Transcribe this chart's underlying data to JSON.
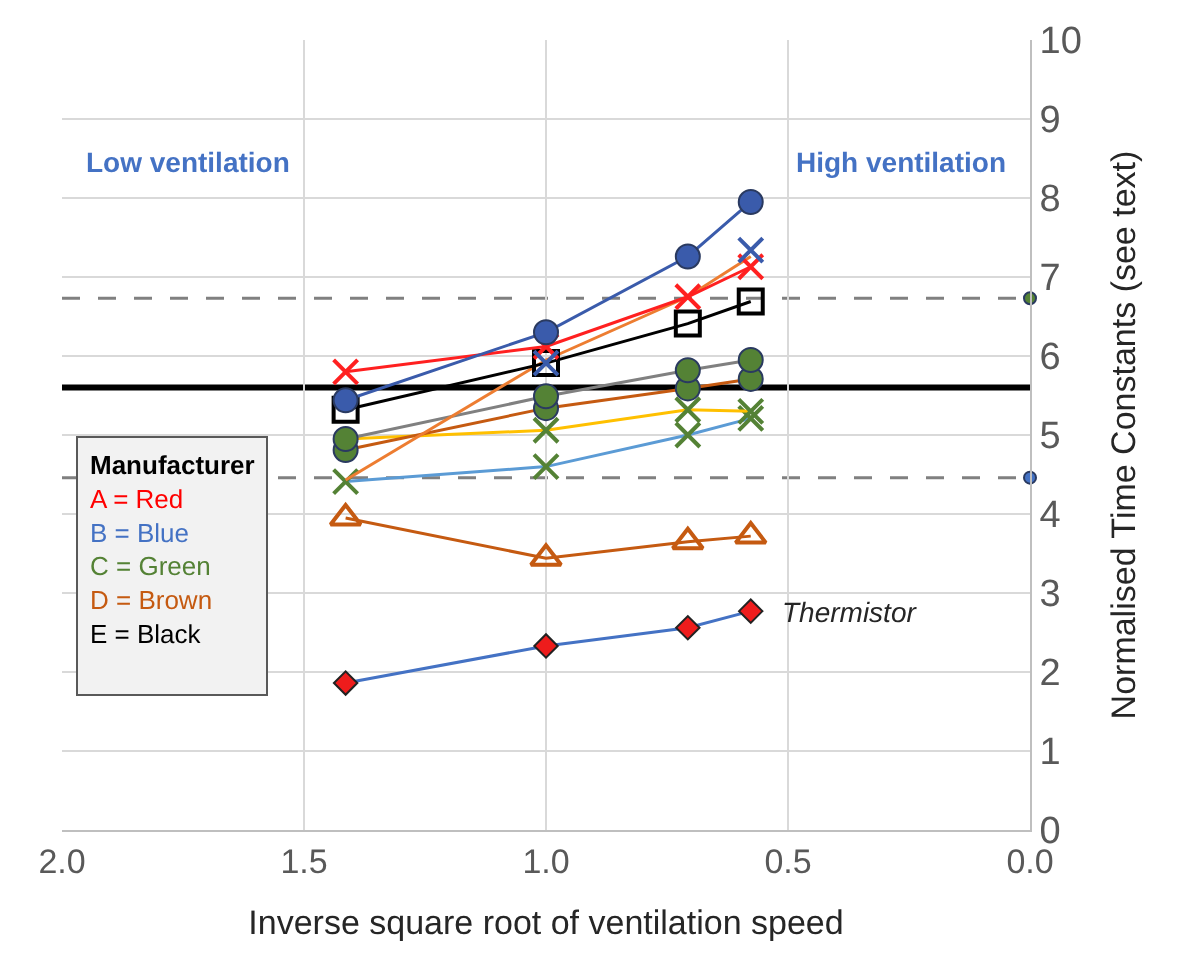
{
  "chart_data": {
    "type": "line",
    "xlabel": "Inverse square root of ventilation speed",
    "ylabel": "Normalised Time Constants (see text)",
    "x": [
      1.414,
      1.0,
      0.707,
      0.577
    ],
    "xlim": [
      2,
      0
    ],
    "xticks": [
      {
        "value": 2,
        "label": "2.0"
      },
      {
        "value": 1.5,
        "label": "1.5"
      },
      {
        "value": 1,
        "label": "1.0"
      },
      {
        "value": 0.5,
        "label": "0.5"
      },
      {
        "value": 0,
        "label": "0.0"
      }
    ],
    "ylim": [
      0,
      10
    ],
    "yticks": [
      0,
      1,
      2,
      3,
      4,
      5,
      6,
      7,
      8,
      9,
      10
    ],
    "grid": true,
    "series": [
      {
        "color": "#5b9bd5",
        "colors": [
          "#548235",
          "#548235",
          "#548235",
          "#548235"
        ],
        "marker": "cross",
        "values": [
          4.41,
          4.6,
          5.0,
          5.21
        ]
      },
      {
        "color": "#ffc000",
        "colors": [
          null,
          "#548235",
          "#548235",
          "#548235"
        ],
        "marker": "cross",
        "values": [
          4.95,
          5.06,
          5.32,
          5.3
        ]
      },
      {
        "color": "#c55a11",
        "colors": [
          "#548235",
          "#548235",
          "#548235",
          "#548235"
        ],
        "marker": "circle",
        "values": [
          4.81,
          5.34,
          5.59,
          5.71
        ]
      },
      {
        "color": "#808080",
        "colors": [
          "#548235",
          "#548235",
          "#548235",
          "#548235"
        ],
        "marker": "circle",
        "values": [
          4.95,
          5.49,
          5.82,
          5.95
        ]
      },
      {
        "color": "#ed7d31",
        "marker": "none",
        "values": [
          4.43,
          5.95,
          6.75,
          7.26
        ]
      },
      {
        "color": "#000000",
        "marker": "square",
        "values": [
          5.32,
          5.91,
          6.41,
          6.69
        ]
      },
      {
        "color": "#ff2020",
        "marker": "cross",
        "values": [
          5.8,
          6.12,
          6.75,
          7.13
        ]
      },
      {
        "color": "#3a5bab",
        "marker": "cross",
        "values": [
          null,
          5.91,
          null,
          7.34
        ]
      },
      {
        "color": "#3a5bab",
        "marker": "circle",
        "values": [
          5.44,
          6.3,
          7.26,
          7.95
        ]
      },
      {
        "color": "#c55a11",
        "marker": "triangle",
        "values": [
          3.95,
          3.44,
          3.65,
          3.72
        ]
      },
      {
        "color": "#4472c4",
        "colors": [
          "#ee1c1c",
          "#ee1c1c",
          "#ee1c1c",
          "#ee1c1c"
        ],
        "marker": "diamond",
        "values": [
          1.86,
          2.33,
          2.56,
          2.77
        ]
      },
      {
        "type": "scatter",
        "x": [
          0
        ],
        "color": "#548235",
        "marker": "circle",
        "values": [
          6.73
        ]
      },
      {
        "type": "scatter",
        "x": [
          0
        ],
        "color": "#4472c4",
        "marker": "circle",
        "values": [
          4.46
        ]
      }
    ],
    "ref_lines": [
      {
        "axis": "y",
        "value": 5.6,
        "color": "#000000",
        "line_style": "solid"
      },
      {
        "axis": "y",
        "value": 6.73,
        "color": "#808080",
        "line_style": "dashed"
      },
      {
        "axis": "y",
        "value": 4.46,
        "color": "#808080",
        "line_style": "dashed"
      }
    ],
    "annotations": [
      "Low ventilation",
      "High ventilation",
      {
        "text": "Thermistor",
        "x": 0.577,
        "y": 2.77
      },
      "Manufacturer",
      "A = Red",
      "B = Blue",
      "C = Green",
      "D = Brown",
      "E = Black"
    ]
  }
}
